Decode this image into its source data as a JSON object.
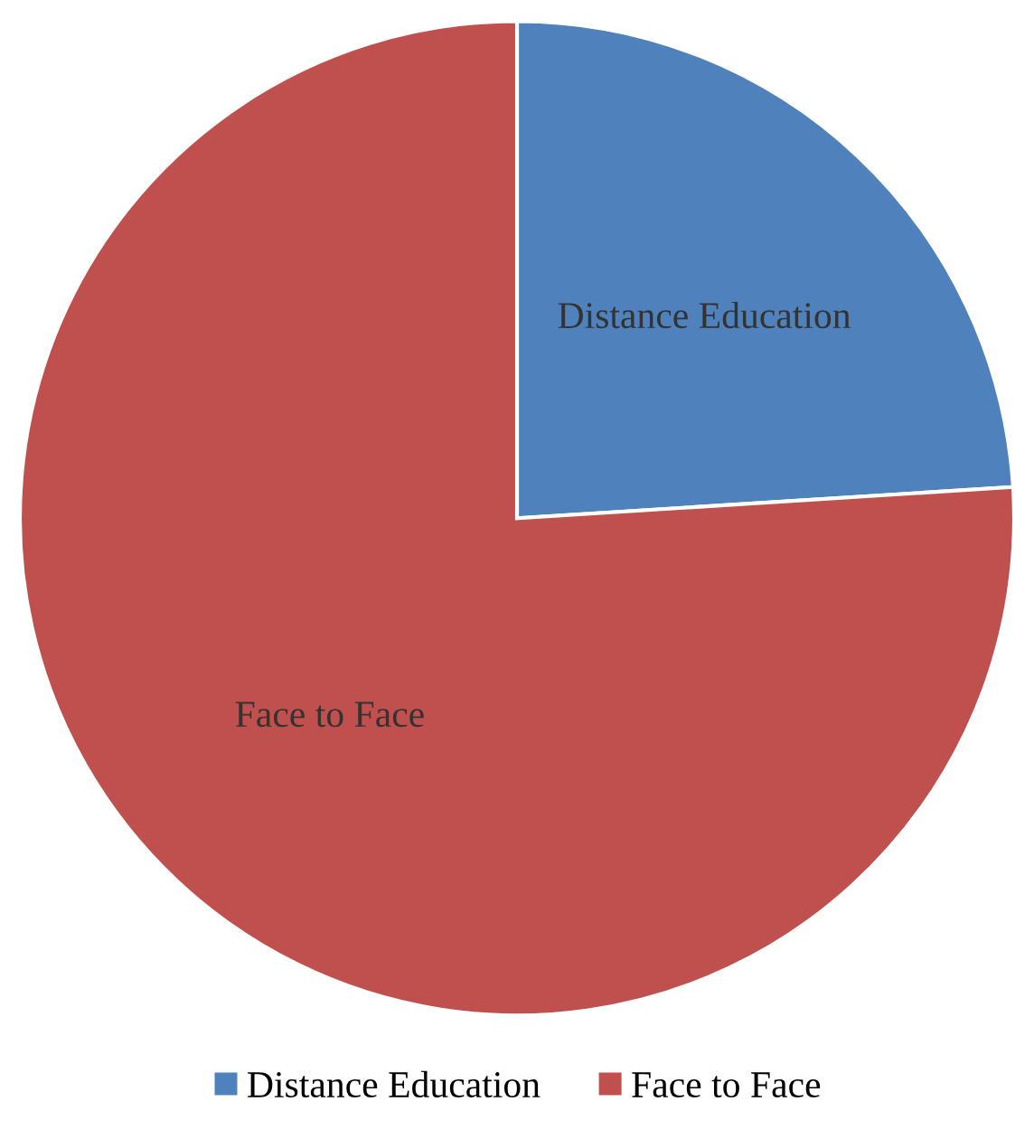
{
  "chart_data": {
    "type": "pie",
    "categories": [
      "Distance Education",
      "Face to Face"
    ],
    "values": [
      24,
      76
    ],
    "colors": [
      "#4f81bd",
      "#c0504d"
    ],
    "legend": "bottom"
  }
}
